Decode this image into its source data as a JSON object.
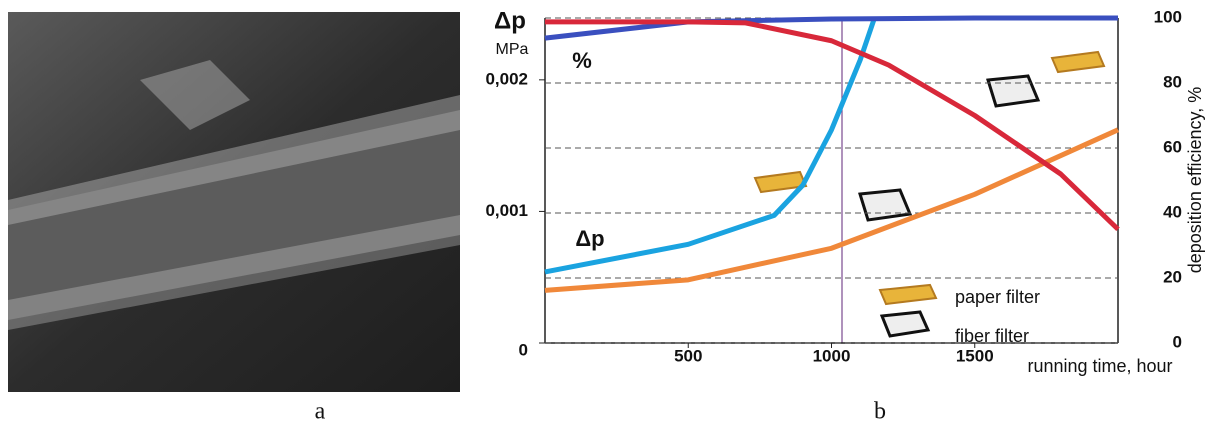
{
  "panel_labels": [
    "a",
    "b"
  ],
  "chart_data": {
    "type": "line",
    "ylabel": "Δp",
    "yunit": "MPa",
    "y2label": "deposition efficiency, %",
    "xlabel": "running time, hour",
    "annotations": [
      "%",
      "Δp"
    ],
    "legend": [
      "paper filter",
      "fiber filter"
    ],
    "xlim": [
      0,
      2000
    ],
    "xticks": [
      500,
      1000,
      1500
    ],
    "ylim": [
      0,
      0.00247
    ],
    "yticks": [
      0,
      {
        "value": 0.001,
        "label": "0,001"
      },
      {
        "value": 0.002,
        "label": "0,002"
      }
    ],
    "y2lim": [
      0,
      100
    ],
    "y2ticks": [
      0,
      20,
      40,
      60,
      80,
      100
    ],
    "grid": true,
    "series": [
      {
        "color": "#1aa3e0",
        "x": [
          0,
          500,
          800,
          900,
          1000,
          1100,
          1150
        ],
        "values": [
          0.00054,
          0.00075,
          0.00097,
          0.0012,
          0.00162,
          0.00215,
          0.00247
        ]
      },
      {
        "color": "#f0883a",
        "x": [
          0,
          500,
          1000,
          1500,
          2000
        ],
        "values": [
          0.0004,
          0.00048,
          0.00072,
          0.00113,
          0.00162
        ]
      },
      {
        "color": "#3a4fbf",
        "axis": "y2",
        "x": [
          0,
          500,
          1000,
          1500,
          2000
        ],
        "values": [
          93.8,
          98.8,
          99.7,
          100,
          100
        ]
      },
      {
        "color": "#d8283a",
        "axis": "y2",
        "x": [
          0,
          500,
          700,
          1000,
          1200,
          1500,
          1800,
          2000
        ],
        "values": [
          98.8,
          98.8,
          98.5,
          93,
          85.5,
          70,
          52,
          35
        ]
      }
    ]
  }
}
